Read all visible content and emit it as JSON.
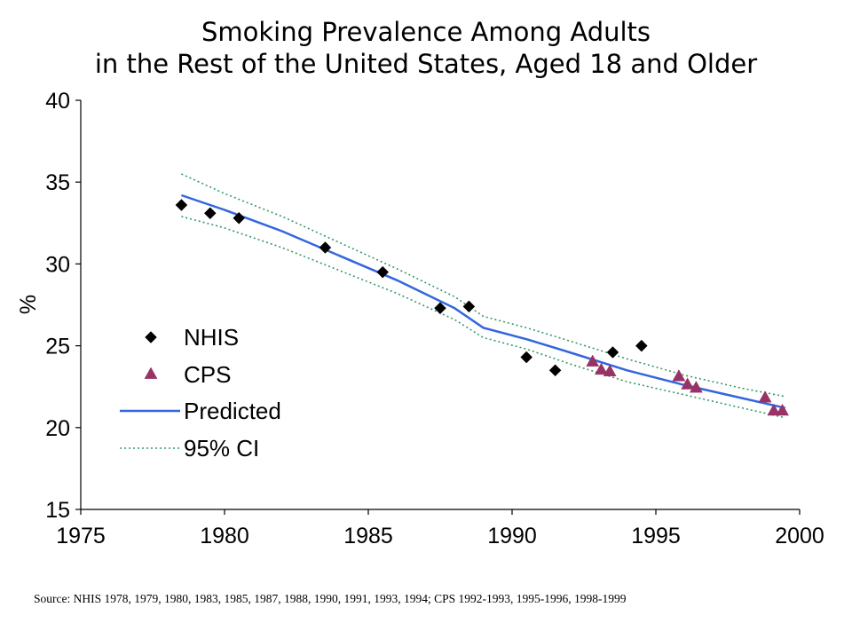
{
  "chart_data": {
    "type": "scatter",
    "title": "Smoking Prevalence Among Adults",
    "subtitle": "in the Rest of the United States, Aged 18 and Older",
    "xlabel": "",
    "ylabel": "%",
    "xlim": [
      1975,
      2000
    ],
    "ylim": [
      15,
      40
    ],
    "xticks": [
      1975,
      1980,
      1985,
      1990,
      1995,
      2000
    ],
    "yticks": [
      15,
      20,
      25,
      30,
      35,
      40
    ],
    "grid": false,
    "legend_position": "left",
    "series": [
      {
        "name": "NHIS",
        "marker": "diamond",
        "color": "#000000",
        "points": [
          [
            1978.5,
            33.6
          ],
          [
            1979.5,
            33.1
          ],
          [
            1980.5,
            32.8
          ],
          [
            1983.5,
            31.0
          ],
          [
            1985.5,
            29.5
          ],
          [
            1987.5,
            27.3
          ],
          [
            1988.5,
            27.4
          ],
          [
            1990.5,
            24.3
          ],
          [
            1991.5,
            23.5
          ],
          [
            1993.5,
            24.6
          ],
          [
            1994.5,
            25.0
          ]
        ]
      },
      {
        "name": "CPS",
        "marker": "triangle",
        "color": "#993366",
        "points": [
          [
            1992.8,
            24.0
          ],
          [
            1993.1,
            23.5
          ],
          [
            1993.4,
            23.4
          ],
          [
            1995.8,
            23.1
          ],
          [
            1996.1,
            22.6
          ],
          [
            1996.4,
            22.4
          ],
          [
            1998.8,
            21.8
          ],
          [
            1999.1,
            21.0
          ],
          [
            1999.4,
            21.0
          ]
        ]
      },
      {
        "name": "Predicted",
        "style": "solid",
        "color": "#3366dd",
        "points": [
          [
            1978.5,
            34.2
          ],
          [
            1980,
            33.3
          ],
          [
            1982,
            32.0
          ],
          [
            1984,
            30.5
          ],
          [
            1986,
            29.0
          ],
          [
            1988,
            27.3
          ],
          [
            1989,
            26.1
          ],
          [
            1990.5,
            25.4
          ],
          [
            1992,
            24.6
          ],
          [
            1994,
            23.5
          ],
          [
            1996,
            22.6
          ],
          [
            1998,
            21.8
          ],
          [
            1999.5,
            21.2
          ]
        ]
      },
      {
        "name": "95% CI",
        "style": "dotted",
        "color": "#339966",
        "upper": [
          [
            1978.5,
            35.5
          ],
          [
            1980,
            34.3
          ],
          [
            1982,
            32.9
          ],
          [
            1984,
            31.3
          ],
          [
            1986,
            29.7
          ],
          [
            1988,
            28.0
          ],
          [
            1989,
            26.8
          ],
          [
            1990.5,
            26.1
          ],
          [
            1992,
            25.3
          ],
          [
            1994,
            24.2
          ],
          [
            1996,
            23.2
          ],
          [
            1998,
            22.4
          ],
          [
            1999.5,
            21.9
          ]
        ],
        "lower": [
          [
            1978.5,
            32.9
          ],
          [
            1980,
            32.2
          ],
          [
            1982,
            31.0
          ],
          [
            1984,
            29.6
          ],
          [
            1986,
            28.2
          ],
          [
            1988,
            26.6
          ],
          [
            1989,
            25.5
          ],
          [
            1990.5,
            24.8
          ],
          [
            1992,
            23.9
          ],
          [
            1994,
            22.8
          ],
          [
            1996,
            22.0
          ],
          [
            1998,
            21.2
          ],
          [
            1999.5,
            20.6
          ]
        ]
      }
    ]
  },
  "source_text": "Source:  NHIS 1978, 1979, 1980, 1983, 1985, 1987, 1988, 1990, 1991, 1993, 1994; CPS 1992-1993, 1995-1996, 1998-1999"
}
